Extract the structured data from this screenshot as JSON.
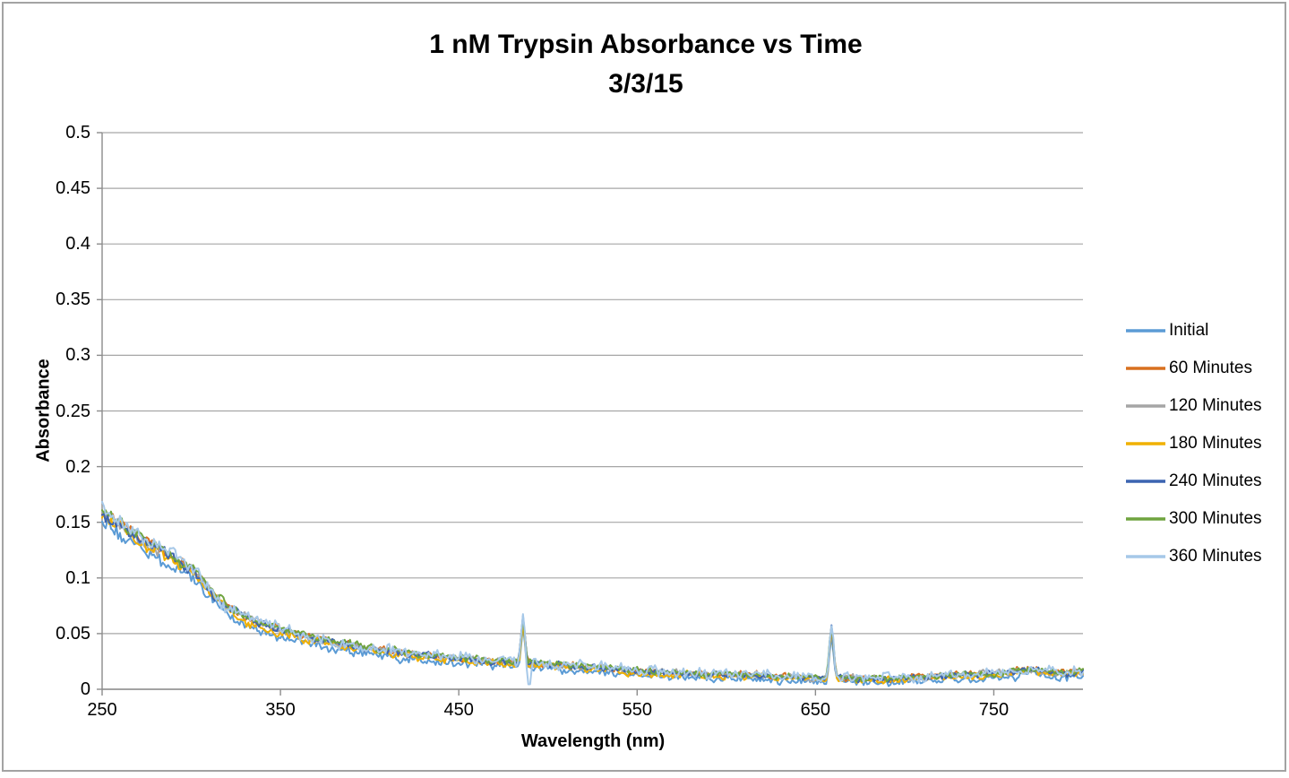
{
  "frame": {
    "border_color": "#a3a3a3",
    "background": "#ffffff"
  },
  "title": {
    "line1": "1 nM Trypsin Absorbance vs Time",
    "line2": "3/3/15"
  },
  "axes": {
    "x_title": "Wavelength (nm)",
    "y_title": "Absorbance",
    "x_tick_labels": [
      "250",
      "350",
      "450",
      "550",
      "650",
      "750"
    ],
    "x_tick_values": [
      250,
      350,
      450,
      550,
      650,
      750
    ],
    "y_tick_labels": [
      "0.5",
      "0.45",
      "0.4",
      "0.35",
      "0.3",
      "0.25",
      "0.2",
      "0.15",
      "0.1",
      "0.05",
      "0"
    ],
    "y_tick_values": [
      0.5,
      0.45,
      0.4,
      0.35,
      0.3,
      0.25,
      0.2,
      0.15,
      0.1,
      0.05,
      0
    ],
    "grid_color": "#a6a6a6",
    "axis_color": "#8c8c8c"
  },
  "chart_data": {
    "type": "line",
    "title": "1 nM Trypsin Absorbance vs Time",
    "subtitle": "3/3/15",
    "xlabel": "Wavelength (nm)",
    "ylabel": "Absorbance",
    "xlim": [
      250,
      800
    ],
    "ylim": [
      0,
      0.5
    ],
    "x_ticks": [
      250,
      350,
      450,
      550,
      650,
      750
    ],
    "y_ticks": [
      0,
      0.05,
      0.1,
      0.15,
      0.2,
      0.25,
      0.3,
      0.35,
      0.4,
      0.45,
      0.5
    ],
    "grid": "horizontal",
    "legend_position": "right",
    "baseline_wavelengths_nm": [
      250,
      260,
      270,
      280,
      290,
      300,
      310,
      320,
      330,
      340,
      350,
      360,
      370,
      380,
      390,
      400,
      410,
      420,
      430,
      440,
      450,
      460,
      470,
      480,
      490,
      500,
      510,
      520,
      530,
      540,
      550,
      560,
      570,
      580,
      590,
      600,
      610,
      620,
      630,
      640,
      650,
      660,
      670,
      680,
      690,
      700,
      710,
      720,
      730,
      740,
      750,
      760,
      770,
      780,
      790,
      800
    ],
    "baseline_absorbance": [
      0.158,
      0.147,
      0.137,
      0.127,
      0.117,
      0.108,
      0.09,
      0.073,
      0.064,
      0.058,
      0.053,
      0.049,
      0.045,
      0.042,
      0.039,
      0.036,
      0.034,
      0.032,
      0.03,
      0.029,
      0.027,
      0.026,
      0.025,
      0.024,
      0.023,
      0.022,
      0.021,
      0.02,
      0.019,
      0.018,
      0.016,
      0.015,
      0.015,
      0.014,
      0.013,
      0.013,
      0.012,
      0.012,
      0.011,
      0.011,
      0.01,
      0.01,
      0.01,
      0.009,
      0.009,
      0.01,
      0.011,
      0.012,
      0.012,
      0.013,
      0.014,
      0.016,
      0.017,
      0.015,
      0.014,
      0.015
    ],
    "series": [
      {
        "name": "Initial",
        "color": "#5B9BD5",
        "offset": -0.0085,
        "noise_amplitude": 0.004
      },
      {
        "name": "60 Minutes",
        "color": "#D8701F",
        "offset": 0.0015,
        "noise_amplitude": 0.0032
      },
      {
        "name": "120 Minutes",
        "color": "#A5A5A5",
        "offset": 0.0,
        "noise_amplitude": 0.0032
      },
      {
        "name": "180 Minutes",
        "color": "#F0B000",
        "offset": -0.0025,
        "noise_amplitude": 0.0034
      },
      {
        "name": "240 Minutes",
        "color": "#3C64B1",
        "offset": 0.0005,
        "noise_amplitude": 0.0032
      },
      {
        "name": "300 Minutes",
        "color": "#6FA43F",
        "offset": 0.0025,
        "noise_amplitude": 0.0034
      },
      {
        "name": "360 Minutes",
        "color": "#A6C8E8",
        "offset": 0.0035,
        "noise_amplitude": 0.005
      }
    ],
    "artifact_spikes": [
      {
        "wavelength_nm": 486,
        "peak_absorbance": 0.065,
        "width_nm": 1.5
      },
      {
        "wavelength_nm": 659,
        "peak_absorbance": 0.056,
        "width_nm": 1.7
      }
    ],
    "artifact_dip": {
      "wavelength_nm": 489.5,
      "series": "360 Minutes",
      "min_absorbance": 0.002,
      "width_nm": 1.4
    }
  }
}
